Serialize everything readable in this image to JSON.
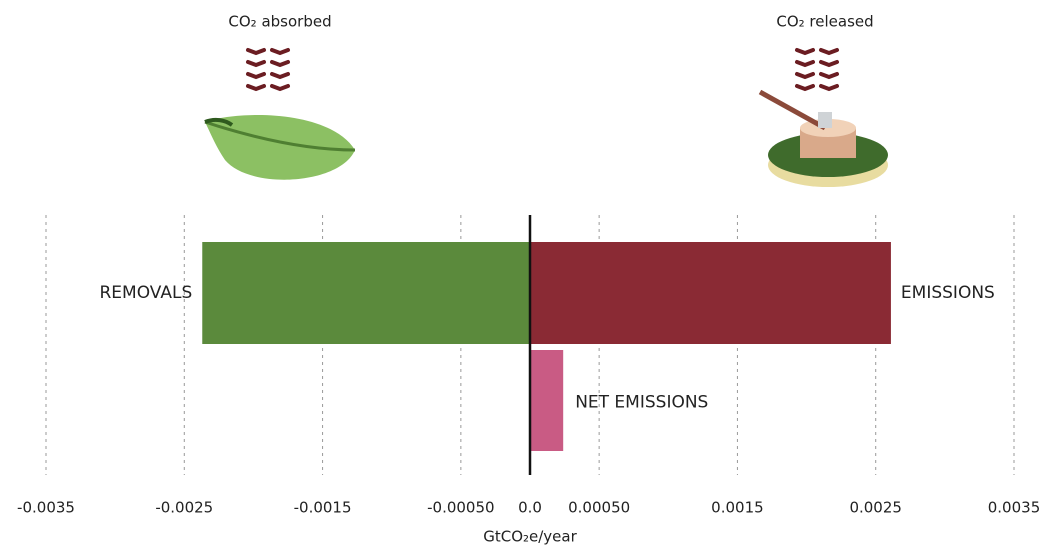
{
  "chart_data": {
    "type": "hbar",
    "annotations": [
      "CO₂ absorbed",
      "CO₂ released"
    ],
    "categories": [
      "REMOVALS",
      "EMISSIONS",
      "NET EMISSIONS"
    ],
    "values": [
      -0.00237,
      0.00261,
      0.00024
    ],
    "colors": [
      "#5b8a3c",
      "#8a2a34",
      "#c95b84"
    ],
    "xlabel": "GtCO₂e/year",
    "xlim": [
      -0.0035,
      0.0035
    ],
    "xticks": [
      -0.0035,
      -0.0025,
      -0.0015,
      {
        "value": -0.0005,
        "label": "-0.00050"
      },
      {
        "value": 0,
        "label": "0.0"
      },
      {
        "value": 0.0005,
        "label": "0.00050"
      },
      0.0015,
      0.0025,
      0.0035
    ],
    "grid": true
  }
}
